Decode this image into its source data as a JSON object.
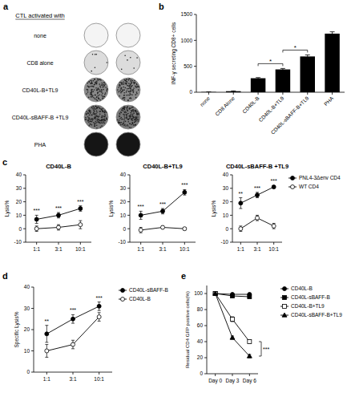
{
  "panel_a": {
    "letter": "a",
    "header": "CTL activated with",
    "rows": [
      "none",
      "CD8 alone",
      "CD40L-B+TL9",
      "CD40L-sBAFF-B +TL9",
      "PHA"
    ]
  },
  "chart_data": [
    {
      "type": "bar",
      "panel": "b",
      "y_label": "INF-γ secreting CD8+ cells",
      "categories": [
        "none",
        "CD8 Alone",
        "CD40L-B",
        "CD40L-B+TL9",
        "CD40L-sBAFF-B+TL9",
        "PHA"
      ],
      "values": [
        5,
        20,
        270,
        440,
        690,
        1130
      ],
      "errors": [
        4,
        6,
        12,
        18,
        30,
        35
      ],
      "color": "#000000",
      "ylim": [
        0,
        1500
      ],
      "yticks": [
        0,
        500,
        1000,
        1500
      ],
      "annotations": [
        {
          "text": "*",
          "categories": [
            "CD40L-B",
            "CD40L-B+TL9"
          ]
        },
        {
          "text": "*",
          "categories": [
            "CD40L-B+TL9",
            "CD40L-sBAFF-B+TL9"
          ]
        }
      ]
    },
    {
      "type": "line",
      "panel": "c",
      "title": "CD40L-B",
      "y_label": "Lysis%",
      "categories": [
        "1:1",
        "3:1",
        "10:1"
      ],
      "ylim": [
        -10,
        40
      ],
      "yticks": [
        -10,
        0,
        10,
        20,
        30,
        40
      ],
      "series": [
        {
          "name": "PNL4-3Δenv CD4",
          "color": "#000000",
          "marker": "circle",
          "values": [
            7,
            10,
            15
          ],
          "errors": [
            3,
            2,
            2
          ]
        },
        {
          "name": "WT CD4",
          "color": "#000000",
          "marker": "open-circle",
          "values": [
            0,
            1,
            3
          ],
          "errors": [
            2,
            2,
            3
          ]
        }
      ],
      "annotations": [
        {
          "text": "***",
          "x": "1:1"
        },
        {
          "text": "***",
          "x": "3:1"
        },
        {
          "text": "***",
          "x": "10:1"
        }
      ]
    },
    {
      "type": "line",
      "title": "CD40L-B+TL9",
      "y_label": "Lysis%",
      "categories": [
        "1:1",
        "3:1",
        "10:1"
      ],
      "ylim": [
        -10,
        40
      ],
      "yticks": [
        -10,
        0,
        10,
        20,
        30,
        40
      ],
      "series": [
        {
          "name": "PNL4-3Δenv CD4",
          "color": "#000000",
          "marker": "circle",
          "values": [
            10,
            13,
            27
          ],
          "errors": [
            3,
            2,
            2
          ]
        },
        {
          "name": "WT CD4",
          "color": "#000000",
          "marker": "open-circle",
          "values": [
            -1,
            1,
            0
          ],
          "errors": [
            2,
            1,
            1
          ]
        }
      ],
      "annotations": [
        {
          "text": "***",
          "x": "1:1"
        },
        {
          "text": "***",
          "x": "3:1"
        },
        {
          "text": "***",
          "x": "10:1"
        }
      ]
    },
    {
      "type": "line",
      "title": "CD40L-sBAFF-B +TL9",
      "y_label": "Lysis%",
      "categories": [
        "1:1",
        "3:1",
        "10:1"
      ],
      "ylim": [
        -10,
        40
      ],
      "yticks": [
        -10,
        0,
        10,
        20,
        30,
        40
      ],
      "legend": "right",
      "series": [
        {
          "name": "PNL4-3Δenv CD4",
          "color": "#000000",
          "marker": "circle",
          "values": [
            19,
            25,
            31
          ],
          "errors": [
            4,
            2,
            1
          ]
        },
        {
          "name": "WT CD4",
          "color": "#000000",
          "marker": "open-circle",
          "values": [
            0,
            8,
            2
          ],
          "errors": [
            2,
            2,
            2
          ]
        }
      ],
      "annotations": [
        {
          "text": "**",
          "x": "1:1"
        },
        {
          "text": "***",
          "x": "3:1"
        },
        {
          "text": "***",
          "x": "10:1"
        }
      ]
    },
    {
      "type": "line",
      "panel": "d",
      "y_label": "Specific Lysis%",
      "categories": [
        "1:1",
        "3:1",
        "10:1"
      ],
      "ylim": [
        0,
        40
      ],
      "yticks": [
        0,
        10,
        20,
        30,
        40
      ],
      "legend": "right",
      "series": [
        {
          "name": "CD40L-sBAFF-B",
          "color": "#000000",
          "marker": "circle",
          "values": [
            18,
            25,
            31
          ],
          "errors": [
            4,
            2,
            2
          ]
        },
        {
          "name": "CD40L-B",
          "color": "#000000",
          "marker": "open-circle",
          "values": [
            10,
            13,
            26
          ],
          "errors": [
            3,
            2,
            2
          ]
        }
      ],
      "annotations": [
        {
          "text": "**",
          "x": "1:1"
        },
        {
          "text": "***",
          "x": "3:1"
        },
        {
          "text": "***",
          "x": "10:1"
        }
      ]
    },
    {
      "type": "line",
      "panel": "e",
      "y_label": "Residual CD4 GFP positive cells(%)",
      "categories": [
        "Day 0",
        "Day 3",
        "Day 6"
      ],
      "ylim": [
        0,
        110
      ],
      "yticks": [
        0,
        20,
        40,
        60,
        80,
        100
      ],
      "legend": "right",
      "series": [
        {
          "name": "CD40L-B",
          "color": "#000000",
          "marker": "circle",
          "values": [
            100,
            99,
            99
          ],
          "errors": [
            1,
            1,
            1
          ]
        },
        {
          "name": "CD40L-sBAFF-B",
          "color": "#000000",
          "marker": "square",
          "values": [
            100,
            97,
            96
          ],
          "errors": [
            1,
            1,
            1
          ]
        },
        {
          "name": "CD40L-B+TL9",
          "color": "#000000",
          "marker": "open-square",
          "values": [
            100,
            68,
            40
          ],
          "errors": [
            1,
            3,
            2
          ]
        },
        {
          "name": "CD40L-sBAFF-B+TL9",
          "color": "#000000",
          "marker": "triangle",
          "values": [
            100,
            45,
            22
          ],
          "errors": [
            1,
            2,
            2
          ]
        }
      ],
      "annotations": [
        {
          "text": "***",
          "x": "Day 6",
          "series": [
            "CD40L-B+TL9",
            "CD40L-sBAFF-B+TL9"
          ]
        }
      ]
    }
  ]
}
